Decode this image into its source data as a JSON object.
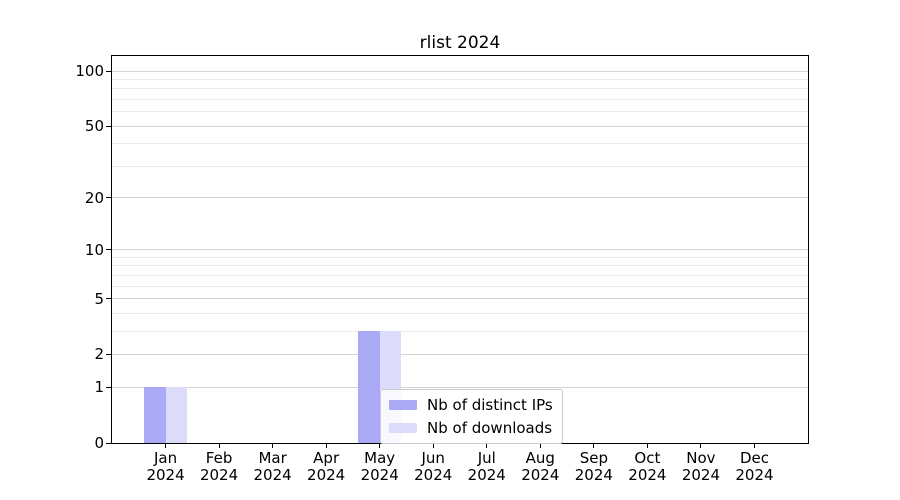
{
  "chart_data": {
    "type": "bar",
    "title": "rlist 2024",
    "categories": [
      "Jan",
      "Feb",
      "Mar",
      "Apr",
      "May",
      "Jun",
      "Jul",
      "Aug",
      "Sep",
      "Oct",
      "Nov",
      "Dec"
    ],
    "year": "2024",
    "series": [
      {
        "name": "Nb of distinct IPs",
        "color": "#a9a9f5",
        "values": [
          1,
          0,
          0,
          0,
          3,
          0,
          0,
          0,
          0,
          0,
          0,
          0
        ]
      },
      {
        "name": "Nb of downloads",
        "color": "#dcdcfa",
        "values": [
          1,
          0,
          0,
          0,
          3,
          0,
          0,
          0,
          0,
          0,
          0,
          0
        ]
      }
    ],
    "xlabel": "",
    "ylabel": "",
    "yscale": "log1p",
    "ylim": [
      0,
      119
    ],
    "yticks": [
      0,
      1,
      2,
      5,
      10,
      20,
      50,
      100
    ],
    "minor_gridlines": [
      3,
      4,
      6,
      7,
      8,
      9,
      30,
      40,
      60,
      70,
      80,
      90
    ],
    "grid": true,
    "legend_position": "lower center inside"
  },
  "colors": {
    "axis": "#000000",
    "major_grid": "#d4d4d4",
    "minor_grid": "#ececec",
    "legend_border": "#cccccc"
  }
}
